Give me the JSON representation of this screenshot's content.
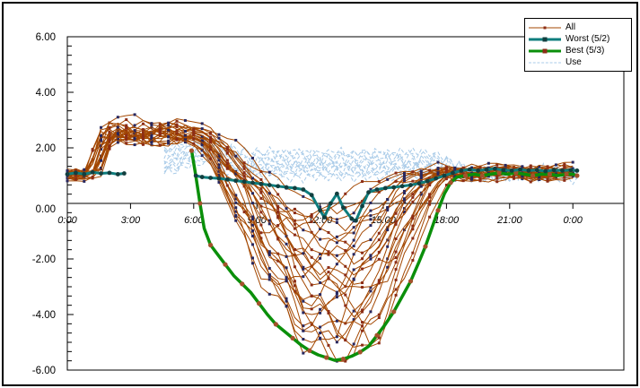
{
  "chart_data": {
    "type": "line",
    "title": "",
    "x_axis": {
      "tick_hours": [
        0,
        3,
        6,
        9,
        12,
        15,
        18,
        21,
        24
      ],
      "labels": [
        "0:00",
        "3:00",
        "6:00",
        "9:00",
        "12:00",
        "15:00",
        "18:00",
        "21:00",
        "0:00"
      ],
      "range_hours": [
        0,
        26.4
      ],
      "data_end_hour": 24.2
    },
    "y_axis": {
      "tick_values": [
        6,
        4,
        2,
        0,
        -2,
        -4,
        -6
      ],
      "labels": [
        "6.00",
        "4.00",
        "2.00",
        "0.00",
        "-2.00",
        "-4.00",
        "-6.00"
      ],
      "range": [
        -6,
        6
      ],
      "minor_tick_step": 0.3333
    },
    "grid": "off",
    "legend": {
      "position": "top-right",
      "entries": [
        {
          "label": "All",
          "color": "#a34700",
          "style": "thin",
          "marker": "#8c2d17"
        },
        {
          "label": "Worst (5/2)",
          "color": "#0e7d7d",
          "style": "thick",
          "marker": "#123f3f"
        },
        {
          "label": "Best (5/3)",
          "color": "#0a8f0a",
          "style": "thick",
          "marker": "#8c2d17"
        },
        {
          "label": "Use",
          "color": "#a9cbe8",
          "style": "dashed",
          "marker": ""
        }
      ]
    },
    "series": [
      {
        "name": "All",
        "kind": "family-line",
        "color": "#a34700",
        "marker_colors": [
          "#27275f",
          "#8c2d17"
        ],
        "line_params_key": [
          "night",
          "rise_h",
          "plateau",
          "drop_h",
          "min",
          "min_h",
          "rise_end_h",
          "evening"
        ],
        "lines": [
          [
            1.0,
            0.8,
            2.45,
            5.6,
            -5.55,
            12.8,
            17.8,
            1.1
          ],
          [
            0.95,
            1.0,
            2.55,
            5.7,
            -5.4,
            13.4,
            18.0,
            1.2
          ],
          [
            1.1,
            1.2,
            2.35,
            5.5,
            -5.25,
            12.2,
            17.5,
            1.05
          ],
          [
            0.9,
            0.7,
            2.6,
            5.8,
            -5.1,
            13.9,
            18.3,
            1.15
          ],
          [
            1.05,
            1.4,
            2.3,
            5.5,
            -4.95,
            11.6,
            17.2,
            0.95
          ],
          [
            1.15,
            0.9,
            2.7,
            5.9,
            -4.8,
            14.3,
            18.5,
            1.25
          ],
          [
            0.85,
            1.1,
            2.4,
            5.6,
            -4.6,
            12.5,
            17.9,
            1.0
          ],
          [
            1.2,
            1.3,
            2.5,
            5.7,
            -4.4,
            13.1,
            18.1,
            1.3
          ],
          [
            1.0,
            0.6,
            2.25,
            5.4,
            -4.2,
            11.2,
            17.0,
            1.1
          ],
          [
            0.95,
            1.5,
            2.65,
            5.8,
            -4.0,
            14.8,
            18.6,
            1.05
          ],
          [
            1.1,
            0.8,
            2.45,
            5.6,
            -3.8,
            12.0,
            17.6,
            1.2
          ],
          [
            1.05,
            1.2,
            2.55,
            5.7,
            -3.6,
            13.6,
            18.2,
            0.9
          ],
          [
            0.9,
            1.0,
            2.35,
            5.5,
            -3.4,
            10.8,
            16.8,
            1.15
          ],
          [
            1.15,
            1.4,
            2.6,
            5.9,
            -3.2,
            14.0,
            18.4,
            1.1
          ],
          [
            1.0,
            0.9,
            2.4,
            5.6,
            -3.0,
            12.9,
            17.7,
            1.0
          ],
          [
            1.1,
            1.1,
            2.7,
            5.8,
            -2.8,
            13.3,
            18.0,
            1.25
          ],
          [
            0.95,
            1.3,
            2.3,
            5.4,
            -2.6,
            10.4,
            16.6,
            1.05
          ],
          [
            1.05,
            0.7,
            2.5,
            5.7,
            -2.4,
            14.6,
            18.5,
            1.15
          ],
          [
            1.2,
            1.0,
            2.6,
            5.6,
            -2.2,
            11.9,
            17.4,
            1.35
          ],
          [
            0.9,
            1.2,
            2.35,
            5.5,
            -2.0,
            13.0,
            17.9,
            0.95
          ],
          [
            1.0,
            0.8,
            2.45,
            5.8,
            -1.8,
            10.0,
            16.4,
            1.1
          ],
          [
            1.1,
            1.5,
            2.55,
            5.7,
            -1.6,
            14.1,
            18.3,
            1.2
          ],
          [
            0.95,
            0.9,
            3.0,
            5.5,
            -1.3,
            12.6,
            17.6,
            1.0
          ],
          [
            1.05,
            1.1,
            2.25,
            5.6,
            -1.0,
            9.6,
            16.2,
            1.15
          ],
          [
            1.15,
            1.3,
            2.75,
            5.9,
            -0.7,
            13.7,
            18.1,
            1.05
          ],
          [
            0.85,
            1.0,
            2.4,
            5.4,
            -0.45,
            11.0,
            17.3,
            0.9
          ]
        ]
      },
      {
        "name": "Worst (5/2)",
        "kind": "line",
        "color": "#0e7d7d",
        "marker_color": "#123f3f",
        "width": 3,
        "segments": [
          [
            [
              0,
              1.05
            ],
            [
              0.4,
              1.1
            ],
            [
              0.8,
              1.05
            ],
            [
              1.2,
              1.12
            ],
            [
              1.6,
              1.08
            ],
            [
              2.0,
              1.1
            ],
            [
              2.4,
              1.05
            ],
            [
              2.7,
              1.08
            ]
          ],
          [
            [
              6.1,
              1.0
            ],
            [
              6.4,
              0.95
            ],
            [
              6.8,
              0.92
            ],
            [
              7.2,
              0.9
            ],
            [
              7.6,
              0.86
            ],
            [
              8.0,
              0.82
            ],
            [
              8.4,
              0.78
            ],
            [
              8.8,
              0.74
            ],
            [
              9.2,
              0.7
            ],
            [
              9.6,
              0.66
            ],
            [
              10.0,
              0.62
            ],
            [
              10.4,
              0.58
            ],
            [
              10.8,
              0.55
            ],
            [
              11.2,
              0.5
            ],
            [
              11.6,
              0.3
            ],
            [
              12.0,
              -0.25
            ],
            [
              12.2,
              -0.5
            ],
            [
              12.5,
              0.0
            ],
            [
              12.8,
              0.35
            ],
            [
              13.1,
              -0.15
            ],
            [
              13.5,
              -0.55
            ],
            [
              13.7,
              -0.62
            ],
            [
              14.0,
              -0.1
            ],
            [
              14.3,
              0.4
            ],
            [
              14.7,
              0.5
            ],
            [
              15.1,
              0.55
            ],
            [
              15.5,
              0.58
            ],
            [
              15.9,
              0.62
            ],
            [
              16.3,
              0.66
            ],
            [
              16.7,
              0.72
            ],
            [
              17.1,
              0.8
            ],
            [
              17.5,
              0.9
            ],
            [
              17.9,
              1.0
            ],
            [
              18.3,
              1.1
            ],
            [
              18.7,
              1.18
            ],
            [
              19.1,
              1.22
            ],
            [
              19.5,
              1.18
            ],
            [
              19.9,
              1.22
            ],
            [
              20.3,
              1.25
            ],
            [
              20.7,
              1.2
            ],
            [
              21.1,
              1.18
            ],
            [
              21.5,
              1.22
            ],
            [
              21.9,
              1.18
            ],
            [
              22.3,
              1.2
            ],
            [
              22.7,
              1.16
            ],
            [
              23.1,
              1.2
            ],
            [
              23.5,
              1.18
            ],
            [
              23.9,
              1.2
            ],
            [
              24.2,
              1.18
            ]
          ]
        ]
      },
      {
        "name": "Best (5/3)",
        "kind": "line",
        "color": "#0a8f0a",
        "marker_color": "#a3522b",
        "width": 3.5,
        "points": [
          [
            5.9,
            1.9
          ],
          [
            6.1,
            1.0
          ],
          [
            6.3,
            0.0
          ],
          [
            6.5,
            -0.9
          ],
          [
            6.8,
            -1.5
          ],
          [
            7.1,
            -1.8
          ],
          [
            7.5,
            -2.2
          ],
          [
            7.9,
            -2.6
          ],
          [
            8.3,
            -2.9
          ],
          [
            8.7,
            -3.2
          ],
          [
            9.1,
            -3.6
          ],
          [
            9.5,
            -4.0
          ],
          [
            9.9,
            -4.35
          ],
          [
            10.3,
            -4.6
          ],
          [
            10.7,
            -4.85
          ],
          [
            11.1,
            -5.1
          ],
          [
            11.5,
            -5.3
          ],
          [
            11.9,
            -5.45
          ],
          [
            12.3,
            -5.55
          ],
          [
            12.7,
            -5.65
          ],
          [
            13.1,
            -5.6
          ],
          [
            13.5,
            -5.5
          ],
          [
            13.9,
            -5.35
          ],
          [
            14.3,
            -5.15
          ],
          [
            14.7,
            -4.75
          ],
          [
            15.1,
            -4.35
          ],
          [
            15.5,
            -3.9
          ],
          [
            15.9,
            -3.35
          ],
          [
            16.3,
            -2.8
          ],
          [
            16.7,
            -2.1
          ],
          [
            17.0,
            -1.55
          ],
          [
            17.3,
            -0.9
          ],
          [
            17.6,
            -0.25
          ],
          [
            17.9,
            0.35
          ],
          [
            18.2,
            0.75
          ],
          [
            18.5,
            0.95
          ],
          [
            18.9,
            1.0
          ],
          [
            19.3,
            1.05
          ],
          [
            19.7,
            1.0
          ],
          [
            20.1,
            1.05
          ],
          [
            20.5,
            1.1
          ],
          [
            20.9,
            1.05
          ],
          [
            21.3,
            1.1
          ],
          [
            21.7,
            1.05
          ],
          [
            22.1,
            1.0
          ],
          [
            22.5,
            1.05
          ],
          [
            22.9,
            1.05
          ],
          [
            23.3,
            1.0
          ],
          [
            23.7,
            1.05
          ],
          [
            24.0,
            1.05
          ],
          [
            24.2,
            1.0
          ]
        ]
      },
      {
        "name": "Use",
        "kind": "family-dashed",
        "color": "#a9cbe8",
        "start_hour": 4.6,
        "bases": [
          0.95,
          1.05,
          1.15,
          1.25,
          1.35,
          1.45,
          1.55,
          1.65,
          1.75,
          1.85,
          1.3
        ]
      }
    ]
  }
}
